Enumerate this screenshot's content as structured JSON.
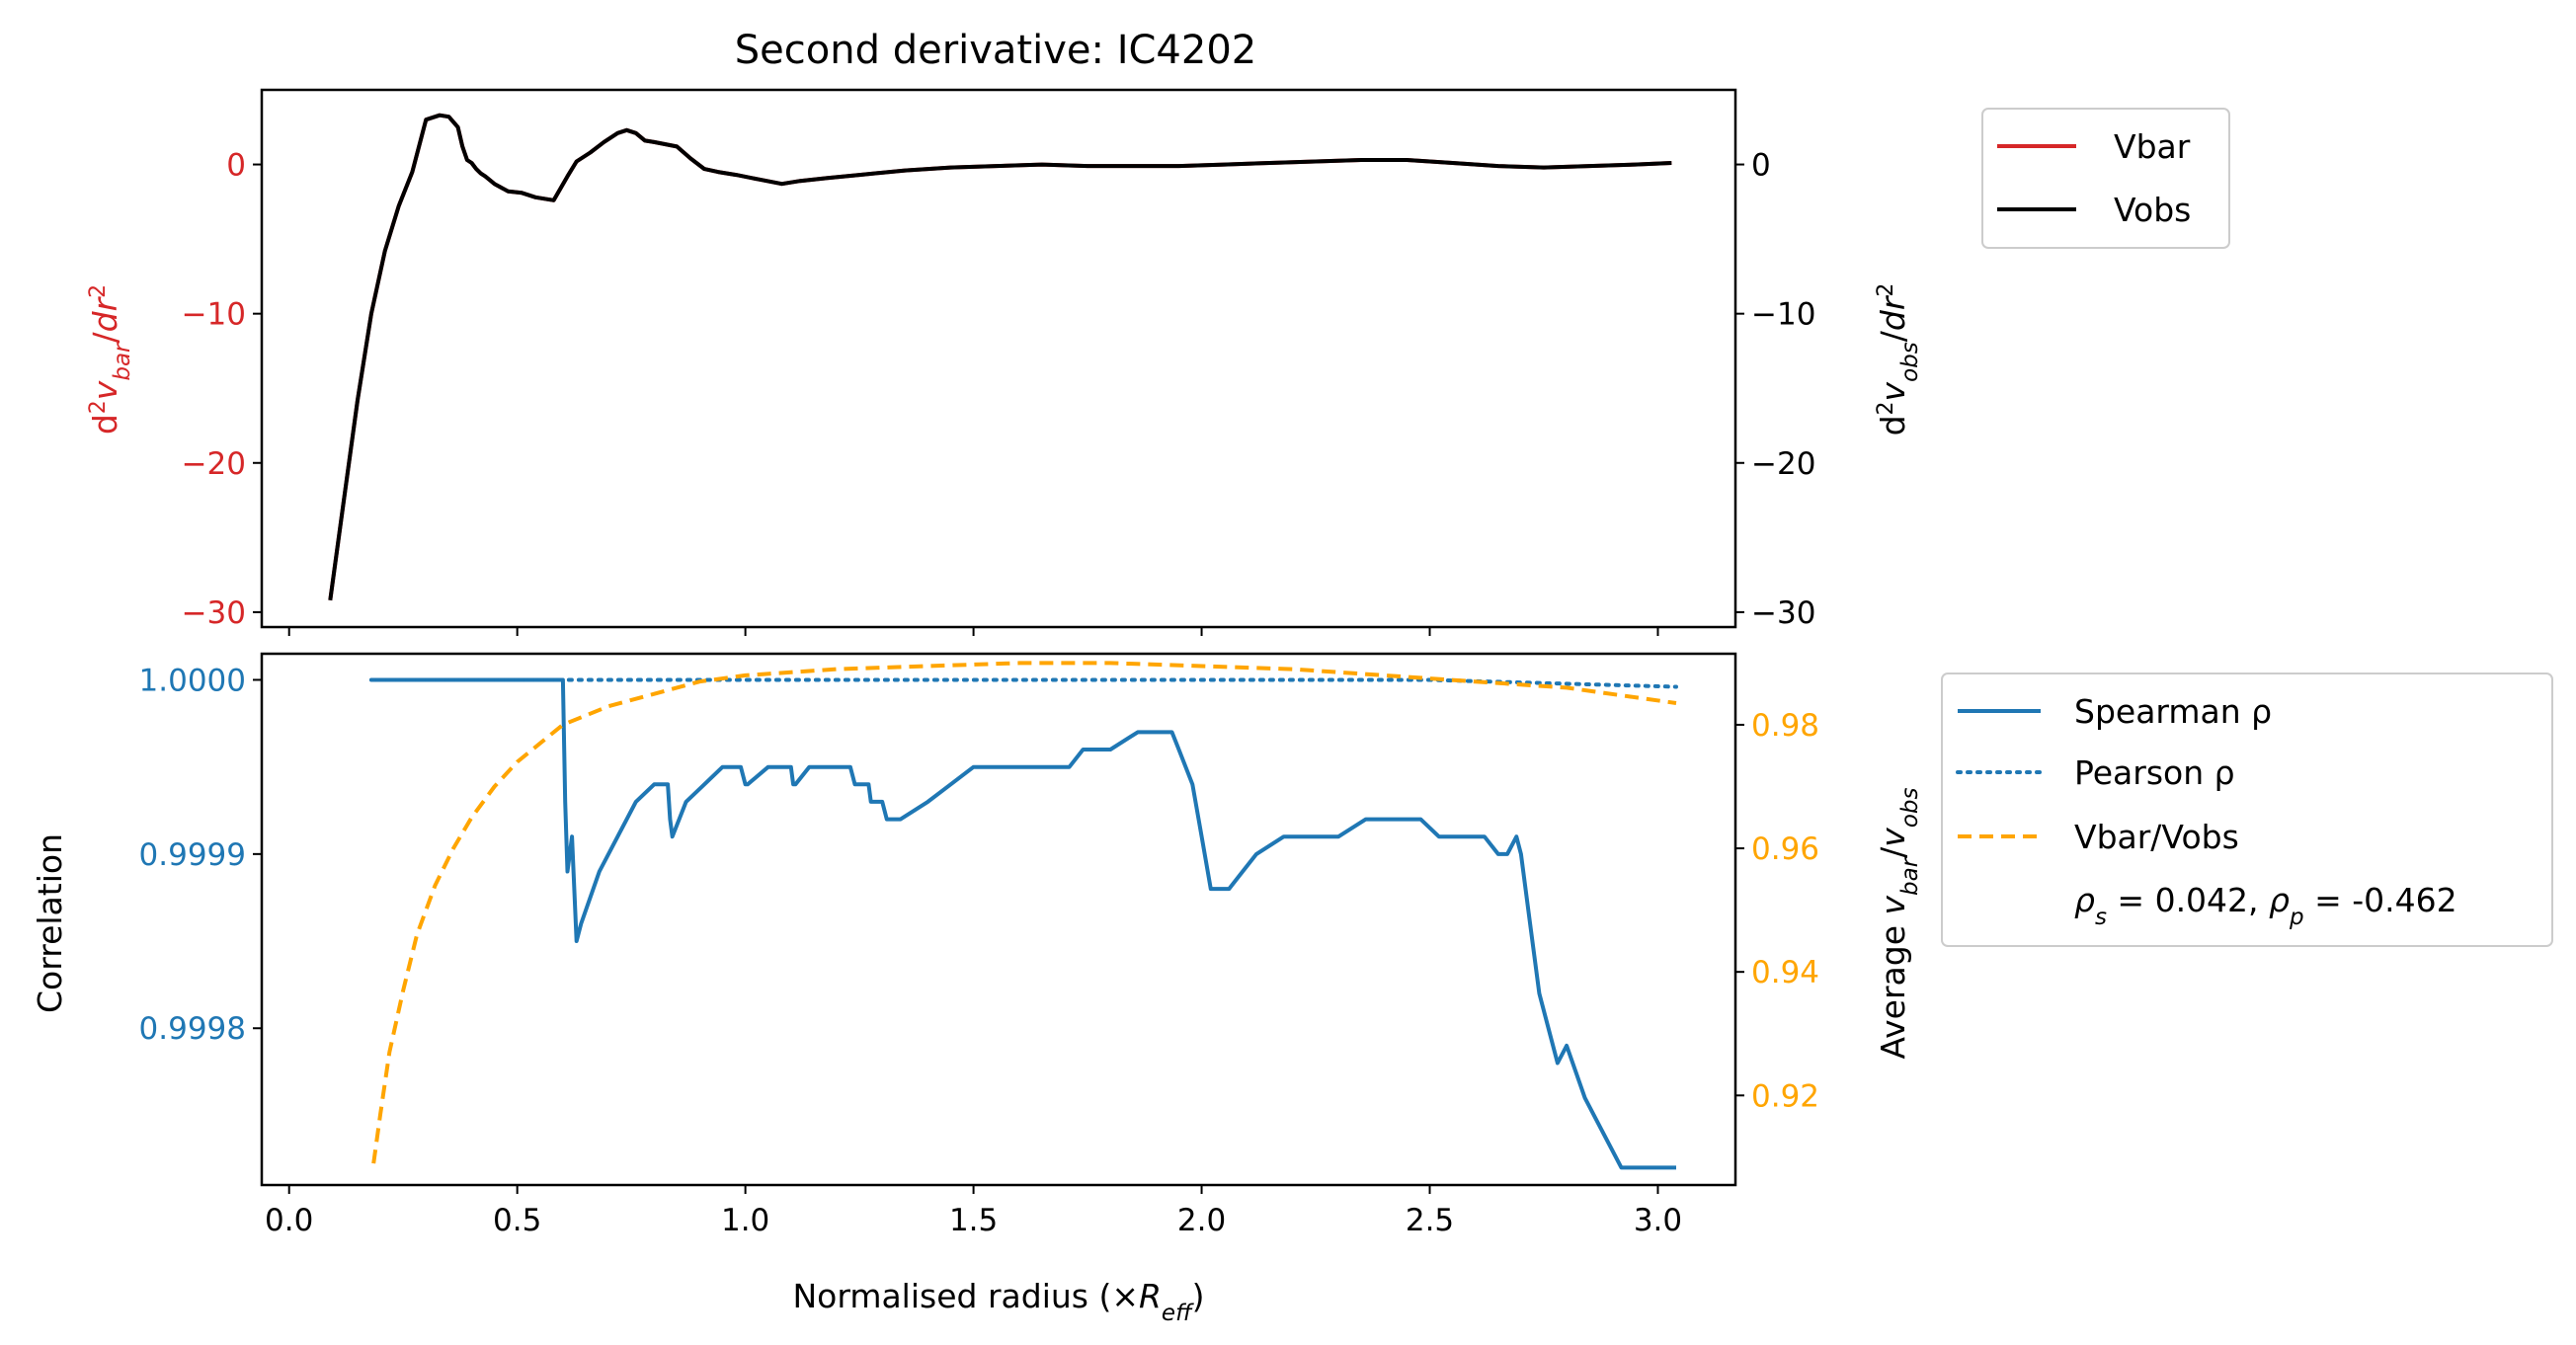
{
  "colors": {
    "vbar": "#d62728",
    "vobs": "#000000",
    "spearman": "#1f77b4",
    "pearson": "#1f77b4",
    "ratio": "#ffa500",
    "left_bottom_ticks": "#1f77b4",
    "right_bottom_ticks": "#ffa500",
    "left_top_ticks": "#d62728"
  },
  "chart_data": [
    {
      "type": "line",
      "title": "Second derivative: IC4202",
      "ylabel_left": "d²v_bar/dr²",
      "ylabel_right": "d²v_obs/dr²",
      "xlim": [
        -0.06,
        3.17
      ],
      "ylim": [
        -31,
        5
      ],
      "x_ticks": [
        0.0,
        0.5,
        1.0,
        1.5,
        2.0,
        2.5,
        3.0
      ],
      "y_ticks_left": [
        "0",
        "−10",
        "−20",
        "−30"
      ],
      "y_tick_values": [
        0,
        -10,
        -20,
        -30
      ],
      "y_ticks_right": [
        "0",
        "−10",
        "−20",
        "−30"
      ],
      "legend": {
        "placement": "outside-upper-right",
        "entries": [
          "Vbar",
          "Vobs"
        ]
      },
      "series": [
        {
          "name": "Vobs",
          "x": [
            0.09,
            0.12,
            0.15,
            0.18,
            0.21,
            0.24,
            0.27,
            0.3,
            0.33,
            0.35,
            0.37,
            0.38,
            0.39,
            0.4,
            0.41,
            0.42,
            0.43,
            0.45,
            0.48,
            0.51,
            0.54,
            0.58,
            0.61,
            0.63,
            0.66,
            0.69,
            0.72,
            0.74,
            0.76,
            0.78,
            0.8,
            0.85,
            0.88,
            0.91,
            0.94,
            0.98,
            1.03,
            1.08,
            1.12,
            1.18,
            1.25,
            1.35,
            1.45,
            1.55,
            1.65,
            1.75,
            1.85,
            1.95,
            2.05,
            2.15,
            2.25,
            2.35,
            2.45,
            2.55,
            2.65,
            2.75,
            2.85,
            2.95,
            3.03
          ],
          "values": [
            -29.2,
            -22.5,
            -15.8,
            -10.0,
            -5.8,
            -2.8,
            -0.5,
            3.0,
            3.3,
            3.2,
            2.5,
            1.2,
            0.3,
            0.1,
            -0.3,
            -0.6,
            -0.8,
            -1.3,
            -1.8,
            -1.9,
            -2.2,
            -2.4,
            -0.8,
            0.2,
            0.8,
            1.5,
            2.1,
            2.3,
            2.1,
            1.6,
            1.5,
            1.2,
            0.4,
            -0.3,
            -0.5,
            -0.7,
            -1.0,
            -1.3,
            -1.1,
            -0.9,
            -0.7,
            -0.4,
            -0.2,
            -0.1,
            0.0,
            -0.1,
            -0.1,
            -0.1,
            0.0,
            0.1,
            0.2,
            0.3,
            0.3,
            0.1,
            -0.1,
            -0.2,
            -0.1,
            0.0,
            0.1
          ]
        },
        {
          "name": "Vbar",
          "x": [
            0.09,
            0.12,
            0.15,
            0.18,
            0.21,
            0.24,
            0.27,
            0.3,
            0.33,
            0.35,
            0.37,
            0.38,
            0.39,
            0.4,
            0.41,
            0.42,
            0.43,
            0.45,
            0.48,
            0.51,
            0.54,
            0.58,
            0.61,
            0.63,
            0.66,
            0.69,
            0.72,
            0.74,
            0.76,
            0.78,
            0.8,
            0.85,
            0.88,
            0.91,
            0.94,
            0.98,
            1.03,
            1.08,
            1.12,
            1.18,
            1.25,
            1.35,
            1.45,
            1.55,
            1.65,
            1.75,
            1.85,
            1.95,
            2.05,
            2.15,
            2.25,
            2.35,
            2.45,
            2.55,
            2.65,
            2.75,
            2.85,
            2.95,
            3.03
          ],
          "values": [
            -29.2,
            -22.5,
            -15.8,
            -10.0,
            -5.8,
            -2.8,
            -0.5,
            3.0,
            3.3,
            3.2,
            2.5,
            1.2,
            0.3,
            0.1,
            -0.3,
            -0.6,
            -0.8,
            -1.3,
            -1.8,
            -1.9,
            -2.2,
            -2.4,
            -0.8,
            0.2,
            0.8,
            1.5,
            2.1,
            2.3,
            2.1,
            1.6,
            1.5,
            1.2,
            0.4,
            -0.3,
            -0.5,
            -0.7,
            -1.0,
            -1.3,
            -1.1,
            -0.9,
            -0.7,
            -0.4,
            -0.2,
            -0.1,
            0.0,
            -0.1,
            -0.1,
            -0.1,
            0.0,
            0.1,
            0.2,
            0.3,
            0.3,
            0.1,
            -0.1,
            -0.2,
            -0.1,
            0.0,
            0.1
          ]
        }
      ]
    },
    {
      "type": "line",
      "xlabel": "Normalised radius (×R_eff)",
      "ylabel_left": "Correlation",
      "ylabel_right": "Average v_bar/v_obs",
      "xlim": [
        -0.06,
        3.17
      ],
      "ylim_left": [
        0.99971,
        1.000015
      ],
      "ylim_right": [
        0.9055,
        0.9915
      ],
      "x_ticks": [
        "0.0",
        "0.5",
        "1.0",
        "1.5",
        "2.0",
        "2.5",
        "3.0"
      ],
      "x_tick_values": [
        0.0,
        0.5,
        1.0,
        1.5,
        2.0,
        2.5,
        3.0
      ],
      "y_ticks_left": [
        "1.0000",
        "0.9999",
        "0.9998"
      ],
      "y_tick_values_left": [
        1.0,
        0.9999,
        0.9998
      ],
      "y_ticks_right": [
        "0.98",
        "0.96",
        "0.94",
        "0.92"
      ],
      "y_tick_values_right": [
        0.98,
        0.96,
        0.94,
        0.92
      ],
      "legend": {
        "placement": "outside-right",
        "entries": [
          "Spearman ρ",
          "Pearson ρ",
          "Vbar/Vobs"
        ],
        "annotation": "ρ_s = 0.042, ρ_p = -0.462"
      },
      "series": [
        {
          "name": "Spearman ρ",
          "axis": "left",
          "x": [
            0.18,
            0.6,
            0.605,
            0.61,
            0.62,
            0.63,
            0.64,
            0.68,
            0.72,
            0.76,
            0.8,
            0.83,
            0.835,
            0.84,
            0.87,
            0.91,
            0.95,
            0.99,
            1.0,
            1.005,
            1.05,
            1.1,
            1.105,
            1.11,
            1.14,
            1.145,
            1.19,
            1.23,
            1.24,
            1.27,
            1.275,
            1.28,
            1.3,
            1.31,
            1.32,
            1.325,
            1.34,
            1.4,
            1.45,
            1.5,
            1.55,
            1.56,
            1.6,
            1.65,
            1.67,
            1.68,
            1.7,
            1.71,
            1.74,
            1.8,
            1.86,
            1.93,
            1.935,
            1.95,
            1.98,
            2.0,
            2.02,
            2.04,
            2.06,
            2.09,
            2.12,
            2.18,
            2.24,
            2.3,
            2.36,
            2.42,
            2.48,
            2.52,
            2.55,
            2.59,
            2.62,
            2.65,
            2.67,
            2.69,
            2.7,
            2.72,
            2.74,
            2.78,
            2.8,
            2.84,
            2.88,
            2.92,
            2.96,
            2.99,
            3.02,
            3.04
          ],
          "values": [
            1.0,
            1.0,
            0.99993,
            0.99989,
            0.99991,
            0.99985,
            0.99986,
            0.99989,
            0.99991,
            0.99993,
            0.99994,
            0.99994,
            0.99992,
            0.99991,
            0.99993,
            0.99994,
            0.99995,
            0.99995,
            0.99994,
            0.99994,
            0.99995,
            0.99995,
            0.99994,
            0.99994,
            0.99995,
            0.99995,
            0.99995,
            0.99995,
            0.99994,
            0.99994,
            0.99993,
            0.99993,
            0.99993,
            0.99992,
            0.99992,
            0.99992,
            0.99992,
            0.99993,
            0.99994,
            0.99995,
            0.99995,
            0.99995,
            0.99995,
            0.99995,
            0.99995,
            0.99995,
            0.99995,
            0.99995,
            0.99996,
            0.99996,
            0.99997,
            0.99997,
            0.99997,
            0.99996,
            0.99994,
            0.99991,
            0.99988,
            0.99988,
            0.99988,
            0.99989,
            0.9999,
            0.99991,
            0.99991,
            0.99991,
            0.99992,
            0.99992,
            0.99992,
            0.99991,
            0.99991,
            0.99991,
            0.99991,
            0.9999,
            0.9999,
            0.99991,
            0.9999,
            0.99986,
            0.99982,
            0.99978,
            0.99979,
            0.99976,
            0.99974,
            0.99972,
            0.99972,
            0.99972,
            0.99972,
            0.99972
          ]
        },
        {
          "name": "Pearson ρ",
          "axis": "left",
          "x": [
            0.18,
            0.6,
            1.0,
            1.5,
            2.0,
            2.5,
            3.04
          ],
          "values": [
            1.0,
            1.0,
            1.0,
            1.0,
            1.0,
            1.0,
            0.999996
          ]
        },
        {
          "name": "Vbar/Vobs",
          "axis": "right",
          "x": [
            0.185,
            0.2,
            0.22,
            0.25,
            0.28,
            0.32,
            0.36,
            0.4,
            0.45,
            0.5,
            0.55,
            0.6,
            0.7,
            0.8,
            0.9,
            1.0,
            1.2,
            1.4,
            1.6,
            1.8,
            2.0,
            2.2,
            2.4,
            2.6,
            2.8,
            3.04
          ],
          "values": [
            0.909,
            0.917,
            0.927,
            0.937,
            0.946,
            0.954,
            0.96,
            0.965,
            0.97,
            0.974,
            0.977,
            0.98,
            0.983,
            0.985,
            0.987,
            0.988,
            0.989,
            0.9895,
            0.99,
            0.99,
            0.9895,
            0.989,
            0.988,
            0.987,
            0.986,
            0.9835
          ]
        }
      ]
    }
  ]
}
